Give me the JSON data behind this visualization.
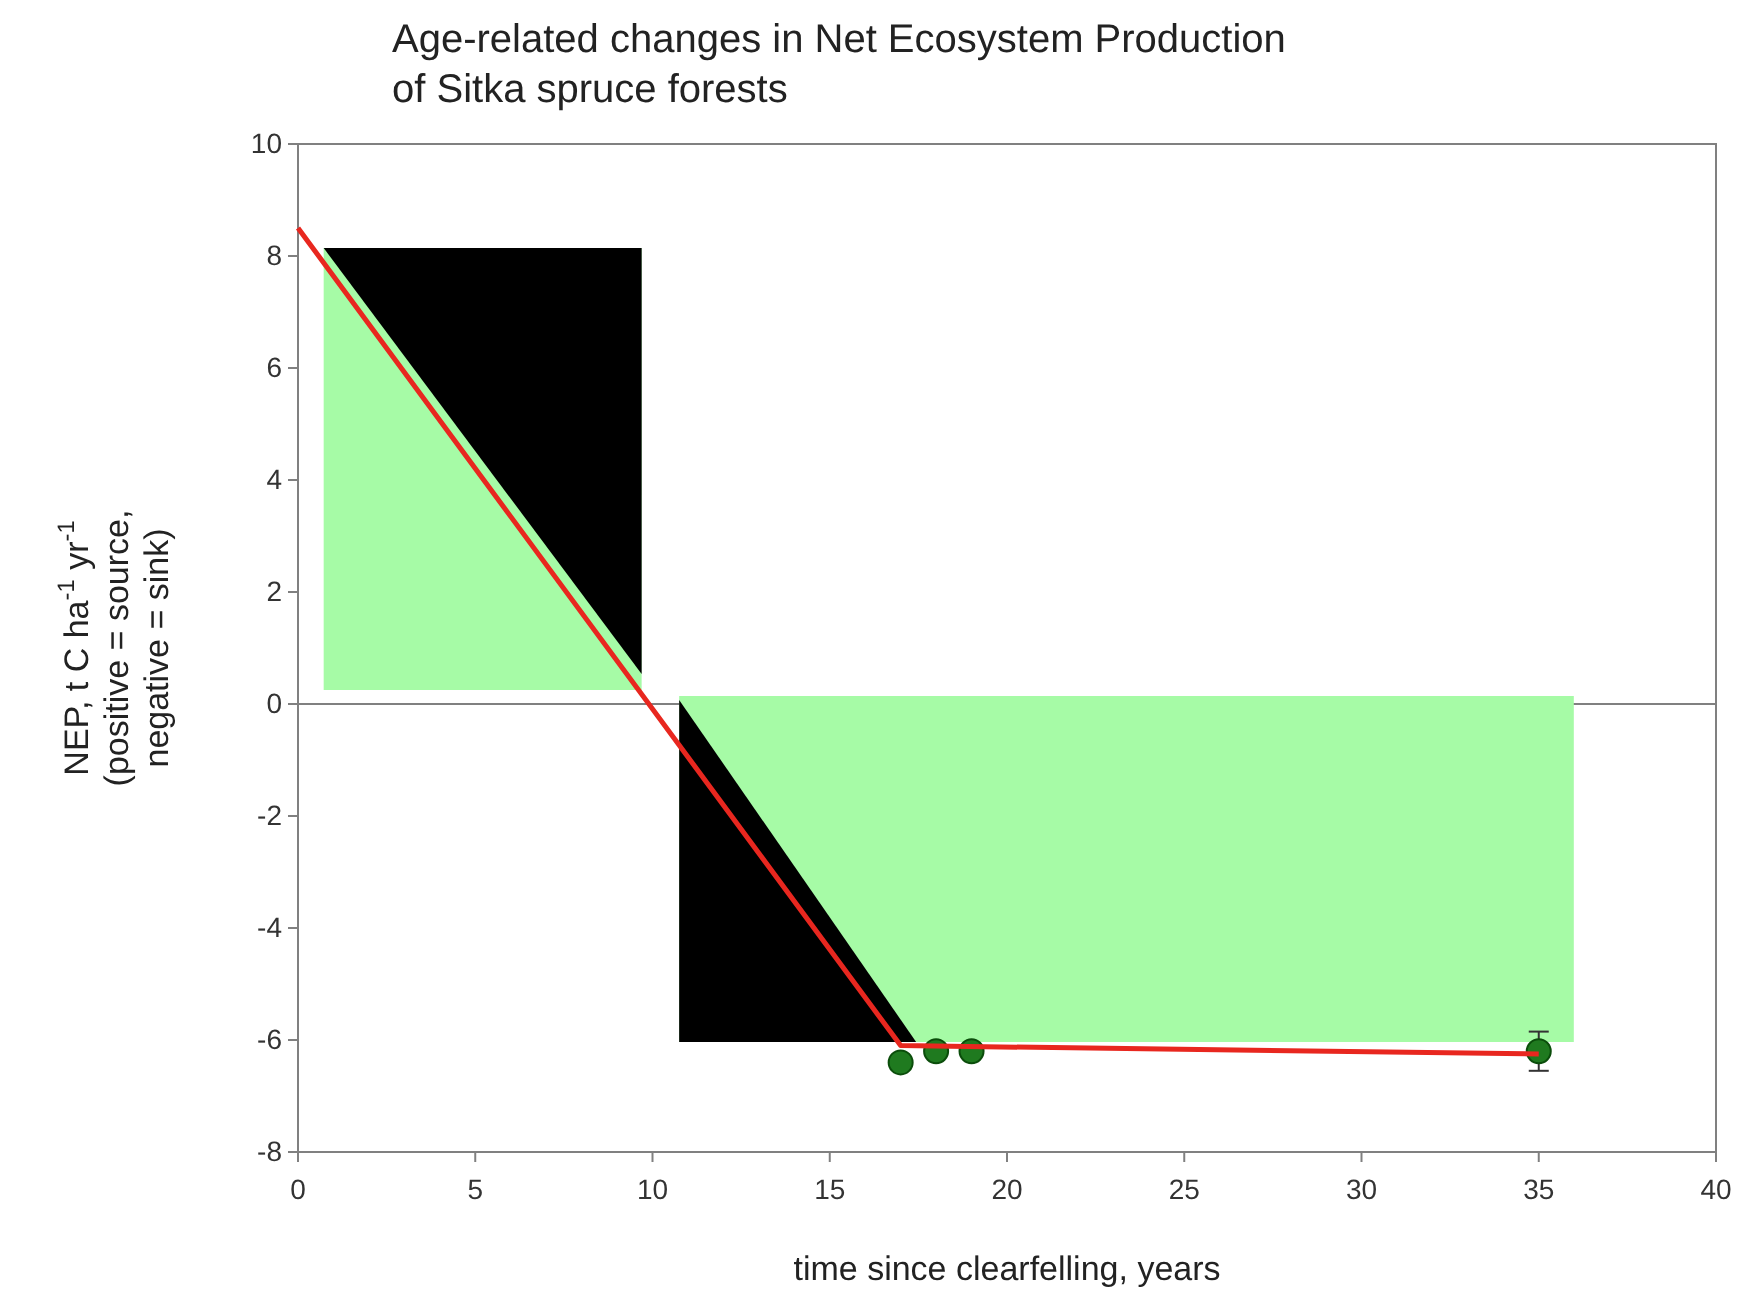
{
  "chart_data": {
    "type": "line",
    "title": "Age-related changes in Net Ecosystem Production\nof Sitka spruce forests",
    "xlabel": "time since clearfelling, years",
    "ylabel": "NEP, t C ha$^{-1}$ yr$^{-1}$\n(positive = source,\nnegative = sink)",
    "xlim": [
      0,
      40
    ],
    "xticks": [
      0,
      5,
      10,
      15,
      20,
      25,
      30,
      35,
      40
    ],
    "ylim": [
      -8,
      10
    ],
    "yticks": [
      -8,
      -6,
      -4,
      -2,
      0,
      2,
      4,
      6,
      8,
      10
    ],
    "ref_lines": [
      {
        "axis": "y",
        "value": 0,
        "color": "#808080"
      }
    ],
    "series": [
      {
        "x": [
          0,
          17,
          35
        ],
        "values": [
          8.5,
          -6.1,
          -6.25
        ],
        "color": "#e8271f"
      },
      {
        "type": "scatter",
        "x": [
          17,
          18,
          19,
          35
        ],
        "values": [
          -6.4,
          -6.2,
          -6.2,
          -6.2
        ],
        "errors": [
          null,
          null,
          null,
          0.35
        ],
        "color": "#1f7a1f"
      }
    ]
  }
}
